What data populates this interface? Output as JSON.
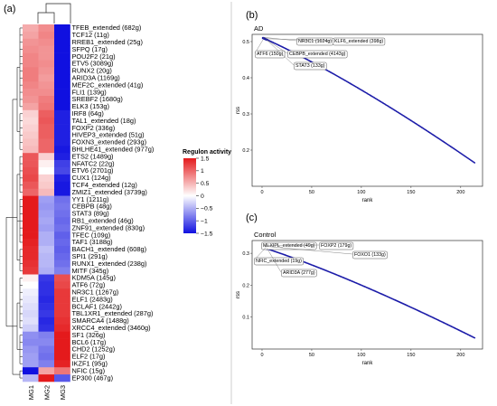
{
  "panels": {
    "a": {
      "letter": "(a)"
    },
    "b": {
      "letter": "(b)",
      "title": "AD"
    },
    "c": {
      "letter": "(c)",
      "title": "Control"
    }
  },
  "colors": {
    "high": "#e41a1c",
    "mid": "#ffffff",
    "low": "#1010e0",
    "point": "#1a1aa8",
    "panel_bg": "#ffffff"
  },
  "chart_data": [
    {
      "type": "heatmap",
      "panel": "a",
      "columns": [
        "MG1",
        "MG2",
        "MG3"
      ],
      "legend": {
        "title": "Regulon activity",
        "ticks": [
          1.5,
          1,
          0.5,
          0,
          -0.5,
          -1,
          -1.5
        ]
      },
      "rows": [
        {
          "label": "TFEB_extended (682g)",
          "values": [
            0.55,
            0.75,
            -1.5
          ]
        },
        {
          "label": "TCF12 (11g)",
          "values": [
            0.6,
            0.8,
            -1.5
          ]
        },
        {
          "label": "RREB1_extended (25g)",
          "values": [
            0.7,
            0.75,
            -1.5
          ]
        },
        {
          "label": "SFPQ (17g)",
          "values": [
            0.75,
            0.7,
            -1.5
          ]
        },
        {
          "label": "POU2F2 (21g)",
          "values": [
            0.8,
            0.7,
            -1.5
          ]
        },
        {
          "label": "ETV5 (3089g)",
          "values": [
            0.8,
            0.75,
            -1.5
          ]
        },
        {
          "label": "RUNX2 (20g)",
          "values": [
            0.85,
            0.7,
            -1.5
          ]
        },
        {
          "label": "ARID3A (1169g)",
          "values": [
            0.85,
            0.65,
            -1.5
          ]
        },
        {
          "label": "MEF2C_extended (41g)",
          "values": [
            0.8,
            0.7,
            -1.5
          ]
        },
        {
          "label": "FLI1 (139g)",
          "values": [
            0.75,
            0.75,
            -1.5
          ]
        },
        {
          "label": "SREBF2 (1680g)",
          "values": [
            0.7,
            0.85,
            -1.5
          ]
        },
        {
          "label": "ELK3 (153g)",
          "values": [
            0.6,
            0.9,
            -1.5
          ]
        },
        {
          "label": "IRF8 (64g)",
          "values": [
            0.3,
            1.05,
            -1.4
          ]
        },
        {
          "label": "TAL1_extended (18g)",
          "values": [
            0.25,
            1.1,
            -1.4
          ]
        },
        {
          "label": "FOXP2 (336g)",
          "values": [
            0.3,
            1.05,
            -1.4
          ]
        },
        {
          "label": "HIVEP3_extended (51g)",
          "values": [
            0.35,
            1.05,
            -1.4
          ]
        },
        {
          "label": "FOXN3_extended (293g)",
          "values": [
            0.4,
            1.0,
            -1.4
          ]
        },
        {
          "label": "BHLHE41_extended (977g)",
          "values": [
            0.45,
            1.0,
            -1.45
          ]
        },
        {
          "label": "ETS2 (1489g)",
          "values": [
            1.1,
            0.3,
            -1.4
          ]
        },
        {
          "label": "NFATC2 (22g)",
          "values": [
            1.1,
            0.1,
            -1.2
          ]
        },
        {
          "label": "ETV6 (2701g)",
          "values": [
            1.15,
            0.0,
            -1.15
          ]
        },
        {
          "label": "CUX1 (124g)",
          "values": [
            1.2,
            0.3,
            -1.4
          ]
        },
        {
          "label": "TCF4_extended (12g)",
          "values": [
            1.1,
            0.35,
            -1.45
          ]
        },
        {
          "label": "ZMIZ1_extended (3739g)",
          "values": [
            1.0,
            0.45,
            -1.45
          ]
        },
        {
          "label": "YY1 (1211g)",
          "values": [
            1.5,
            -0.6,
            -0.9
          ]
        },
        {
          "label": "CEBPB (48g)",
          "values": [
            1.5,
            -0.65,
            -0.85
          ]
        },
        {
          "label": "STAT3 (89g)",
          "values": [
            1.5,
            -0.6,
            -0.9
          ]
        },
        {
          "label": "RB1_extended (46g)",
          "values": [
            1.5,
            -0.55,
            -0.95
          ]
        },
        {
          "label": "ZNF91_extended (830g)",
          "values": [
            1.5,
            -0.6,
            -0.9
          ]
        },
        {
          "label": "TFEC (109g)",
          "values": [
            1.5,
            -0.5,
            -1.0
          ]
        },
        {
          "label": "TAF1 (3188g)",
          "values": [
            1.45,
            -0.5,
            -0.95
          ]
        },
        {
          "label": "BACH1_extended (608g)",
          "values": [
            1.4,
            -0.4,
            -1.0
          ]
        },
        {
          "label": "SPI1 (291g)",
          "values": [
            1.4,
            -0.45,
            -0.95
          ]
        },
        {
          "label": "RUNX1_extended (238g)",
          "values": [
            1.35,
            -0.45,
            -0.9
          ]
        },
        {
          "label": "MITF (345g)",
          "values": [
            1.3,
            -0.5,
            -0.8
          ]
        },
        {
          "label": "KDM5A (145g)",
          "values": [
            0.1,
            -1.25,
            1.15
          ]
        },
        {
          "label": "ATF6 (72g)",
          "values": [
            0.0,
            -1.3,
            1.2
          ]
        },
        {
          "label": "NR3C1 (1267g)",
          "values": [
            -0.1,
            -1.3,
            1.3
          ]
        },
        {
          "label": "ELF1 (2483g)",
          "values": [
            -0.15,
            -1.35,
            1.3
          ]
        },
        {
          "label": "BCLAF1 (2442g)",
          "values": [
            -0.2,
            -1.3,
            1.3
          ]
        },
        {
          "label": "TBL1XR1_extended (287g)",
          "values": [
            -0.25,
            -1.25,
            1.3
          ]
        },
        {
          "label": "SMARCA4 (1488g)",
          "values": [
            -0.2,
            -1.35,
            1.35
          ]
        },
        {
          "label": "XRCC4_extended (3460g)",
          "values": [
            -0.3,
            -1.3,
            1.4
          ]
        },
        {
          "label": "SF1 (326g)",
          "values": [
            -0.7,
            -0.8,
            1.5
          ]
        },
        {
          "label": "BCL6 (17g)",
          "values": [
            -0.75,
            -0.75,
            1.5
          ]
        },
        {
          "label": "CHD2 (1252g)",
          "values": [
            -0.65,
            -0.85,
            1.5
          ]
        },
        {
          "label": "ELF2 (17g)",
          "values": [
            -0.6,
            -0.9,
            1.5
          ]
        },
        {
          "label": "IKZF1 (95g)",
          "values": [
            -0.6,
            -0.8,
            1.45
          ]
        },
        {
          "label": "NFIC (15g)",
          "values": [
            -1.5,
            0.6,
            0.9
          ]
        },
        {
          "label": "EP300 (467g)",
          "values": [
            -0.45,
            1.5,
            -1.05
          ]
        }
      ]
    },
    {
      "type": "scatter",
      "panel": "b",
      "title": "AD",
      "xlabel": "rank",
      "ylabel": "rss",
      "xticks": [
        0,
        50,
        100,
        150,
        200
      ],
      "yticks": [
        0.2,
        0.3,
        0.4,
        0.5
      ],
      "xlim": [
        -10,
        222
      ],
      "ylim": [
        0.1,
        0.52
      ],
      "n_points": 214,
      "curve": {
        "start": 0.51,
        "end": 0.165
      },
      "annotations": [
        {
          "label": "NR3C1 (1624g)",
          "rank": 1,
          "rss": 0.512
        },
        {
          "label": "KLF6_extended (398g)",
          "rank": 3,
          "rss": 0.508
        },
        {
          "label": "ATF6 (150g)",
          "rank": 2,
          "rss": 0.51
        },
        {
          "label": "CEBPB_extended (4143g)",
          "rank": 4,
          "rss": 0.506
        },
        {
          "label": "STAT3 (133g)",
          "rank": 5,
          "rss": 0.504
        }
      ]
    },
    {
      "type": "scatter",
      "panel": "c",
      "title": "Control",
      "xlabel": "rank",
      "ylabel": "rss",
      "xticks": [
        0,
        50,
        100,
        150,
        200
      ],
      "yticks": [
        0.1,
        0.2,
        0.3
      ],
      "xlim": [
        -10,
        222
      ],
      "ylim": [
        0.0,
        0.34
      ],
      "n_points": 214,
      "curve": {
        "start": 0.318,
        "end": 0.035
      },
      "annotations": [
        {
          "label": "MLXIPL_extended (49g)",
          "rank": 1,
          "rss": 0.33
        },
        {
          "label": "FOXP2 (179g)",
          "rank": 2,
          "rss": 0.325
        },
        {
          "label": "FOXO1 (133g)",
          "rank": 3,
          "rss": 0.322
        },
        {
          "label": "NFIC_extended (19g)",
          "rank": 4,
          "rss": 0.319
        },
        {
          "label": "ARID3A (277g)",
          "rank": 5,
          "rss": 0.316
        }
      ]
    }
  ]
}
